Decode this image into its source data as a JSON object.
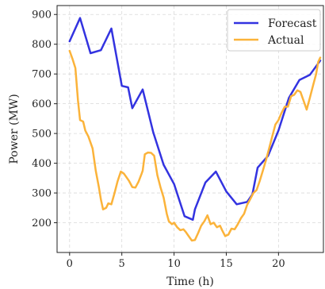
{
  "chart_data": {
    "type": "line",
    "title": "",
    "xlabel": "Time (h)",
    "ylabel": "Power (MW)",
    "xlim": [
      -1.2,
      24.3
    ],
    "ylim": [
      100,
      930
    ],
    "xticks": [
      0,
      5,
      10,
      15,
      20
    ],
    "yticks": [
      200,
      300,
      400,
      500,
      600,
      700,
      800,
      900
    ],
    "grid": true,
    "legend_position": "top-right",
    "series": [
      {
        "name": "Forecast",
        "color": "#3333e0",
        "points": [
          [
            0,
            810
          ],
          [
            1,
            888
          ],
          [
            2,
            770
          ],
          [
            3,
            780
          ],
          [
            4,
            853
          ],
          [
            5,
            660
          ],
          [
            5.6,
            655
          ],
          [
            6,
            585
          ],
          [
            7,
            648
          ],
          [
            8,
            505
          ],
          [
            9,
            395
          ],
          [
            10,
            330
          ],
          [
            11,
            222
          ],
          [
            11.8,
            210
          ],
          [
            12,
            245
          ],
          [
            13,
            335
          ],
          [
            14,
            372
          ],
          [
            15,
            305
          ],
          [
            16,
            262
          ],
          [
            17,
            270
          ],
          [
            17.5,
            295
          ],
          [
            18,
            385
          ],
          [
            19,
            425
          ],
          [
            20,
            510
          ],
          [
            21,
            620
          ],
          [
            22,
            680
          ],
          [
            23,
            697
          ],
          [
            24,
            745
          ]
        ]
      },
      {
        "name": "Actual",
        "color": "#fbb33a",
        "points": [
          [
            0,
            778
          ],
          [
            0.3,
            748
          ],
          [
            0.55,
            720
          ],
          [
            0.8,
            610
          ],
          [
            1,
            545
          ],
          [
            1.3,
            540
          ],
          [
            1.5,
            510
          ],
          [
            1.8,
            490
          ],
          [
            2.2,
            450
          ],
          [
            2.5,
            375
          ],
          [
            2.8,
            320
          ],
          [
            3.0,
            278
          ],
          [
            3.2,
            245
          ],
          [
            3.5,
            250
          ],
          [
            3.7,
            265
          ],
          [
            4.0,
            262
          ],
          [
            4.3,
            300
          ],
          [
            4.6,
            340
          ],
          [
            4.9,
            372
          ],
          [
            5.2,
            365
          ],
          [
            5.5,
            350
          ],
          [
            5.7,
            340
          ],
          [
            6.0,
            320
          ],
          [
            6.3,
            318
          ],
          [
            6.6,
            338
          ],
          [
            6.9,
            365
          ],
          [
            7.0,
            375
          ],
          [
            7.2,
            430
          ],
          [
            7.5,
            436
          ],
          [
            7.8,
            435
          ],
          [
            8.1,
            425
          ],
          [
            8.4,
            360
          ],
          [
            8.7,
            320
          ],
          [
            9.0,
            285
          ],
          [
            9.3,
            230
          ],
          [
            9.5,
            205
          ],
          [
            9.8,
            195
          ],
          [
            10.0,
            200
          ],
          [
            10.3,
            185
          ],
          [
            10.6,
            175
          ],
          [
            10.9,
            178
          ],
          [
            11.1,
            170
          ],
          [
            11.4,
            155
          ],
          [
            11.7,
            140
          ],
          [
            12.0,
            142
          ],
          [
            12.3,
            165
          ],
          [
            12.6,
            190
          ],
          [
            12.9,
            205
          ],
          [
            13.2,
            225
          ],
          [
            13.5,
            195
          ],
          [
            13.8,
            200
          ],
          [
            14.1,
            185
          ],
          [
            14.4,
            190
          ],
          [
            14.6,
            175
          ],
          [
            14.9,
            155
          ],
          [
            15.2,
            160
          ],
          [
            15.5,
            180
          ],
          [
            15.8,
            178
          ],
          [
            16.1,
            195
          ],
          [
            16.4,
            215
          ],
          [
            16.7,
            230
          ],
          [
            17.0,
            260
          ],
          [
            17.3,
            280
          ],
          [
            17.6,
            300
          ],
          [
            17.9,
            310
          ],
          [
            18.2,
            340
          ],
          [
            18.5,
            375
          ],
          [
            18.8,
            410
          ],
          [
            19.1,
            450
          ],
          [
            19.4,
            490
          ],
          [
            19.7,
            530
          ],
          [
            20.0,
            545
          ],
          [
            20.3,
            570
          ],
          [
            20.6,
            590
          ],
          [
            20.9,
            590
          ],
          [
            21.2,
            625
          ],
          [
            21.5,
            630
          ],
          [
            21.8,
            645
          ],
          [
            22.1,
            640
          ],
          [
            22.4,
            610
          ],
          [
            22.7,
            580
          ],
          [
            23.0,
            620
          ],
          [
            23.3,
            660
          ],
          [
            23.6,
            700
          ],
          [
            23.8,
            740
          ],
          [
            24.0,
            755
          ]
        ]
      }
    ]
  }
}
